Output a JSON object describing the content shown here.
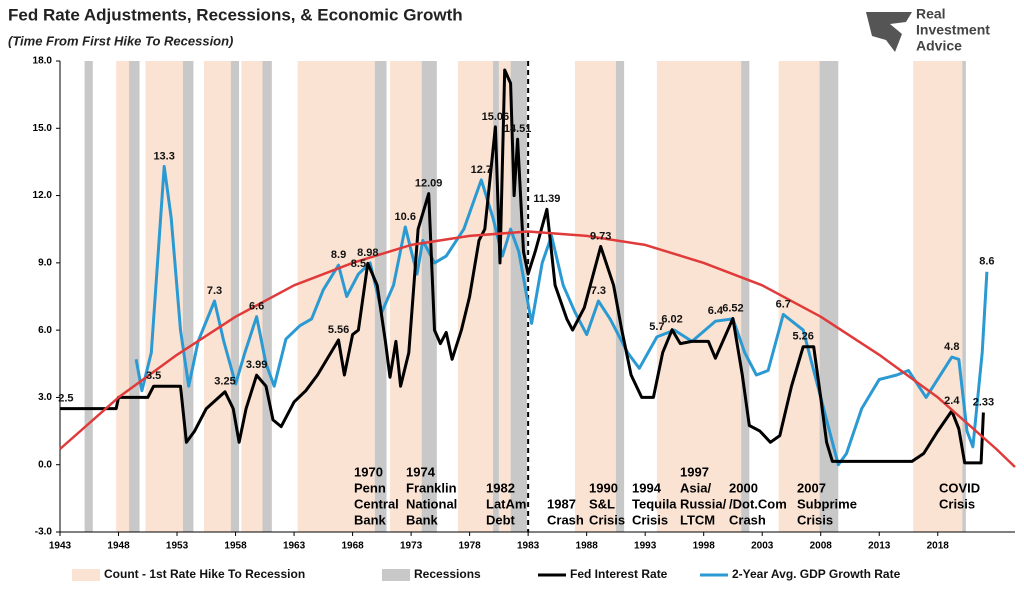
{
  "chart_data": {
    "type": "line",
    "title": "Fed Rate Adjustments, Recessions, & Economic Growth",
    "subtitle": "(Time From First Hike To Recession)",
    "xlim": [
      1943,
      2024.6
    ],
    "xticks": [
      1943,
      1948,
      1953,
      1958,
      1963,
      1968,
      1973,
      1978,
      1983,
      1988,
      1993,
      1998,
      2003,
      2008,
      2013,
      2018
    ],
    "ylim": [
      -3,
      18
    ],
    "yticks": [
      {
        "value": -3,
        "label": "-3.0"
      },
      {
        "value": 0,
        "label": "0.0"
      },
      {
        "value": 3,
        "label": "3.0"
      },
      {
        "value": 6,
        "label": "6.0"
      },
      {
        "value": 9,
        "label": "9.0"
      },
      {
        "value": 12,
        "label": "12.0"
      },
      {
        "value": 15,
        "label": "15.0"
      },
      {
        "value": 18,
        "label": "18.0"
      }
    ],
    "bands": [
      {
        "name": "Count - 1st Rate Hike To Recession",
        "color": "#fbe3d3",
        "ranges": [
          [
            1947.8,
            1948.9
          ],
          [
            1950.3,
            1953.5
          ],
          [
            1955.3,
            1957.6
          ],
          [
            1958.5,
            1960.3
          ],
          [
            1963.3,
            1969.9
          ],
          [
            1971.2,
            1973.9
          ],
          [
            1977.0,
            1980.0
          ],
          [
            1980.5,
            1981.5
          ],
          [
            1987.0,
            1990.5
          ],
          [
            1994.0,
            2001.2
          ],
          [
            2004.4,
            2007.9
          ],
          [
            2015.9,
            2020.1
          ]
        ]
      },
      {
        "name": "Recessions",
        "color": "#c8c8c8",
        "ranges": [
          [
            1945.1,
            1945.8
          ],
          [
            1948.9,
            1949.8
          ],
          [
            1953.5,
            1954.4
          ],
          [
            1957.6,
            1958.3
          ],
          [
            1960.3,
            1961.1
          ],
          [
            1969.9,
            1970.9
          ],
          [
            1973.9,
            1975.2
          ],
          [
            1980.0,
            1980.5
          ],
          [
            1981.5,
            1982.9
          ],
          [
            1990.5,
            1991.2
          ],
          [
            2001.2,
            2001.9
          ],
          [
            2007.9,
            2009.5
          ],
          [
            2020.1,
            2020.4
          ]
        ]
      }
    ],
    "series": [
      {
        "name": "Fed Interest Rate",
        "color": "#000000",
        "x": [
          1943,
          1947.8,
          1948,
          1950.5,
          1951,
          1953.3,
          1953.8,
          1954.5,
          1955.5,
          1957.1,
          1957.8,
          1958.3,
          1958.9,
          1959.8,
          1960.6,
          1961.2,
          1961.9,
          1963,
          1964,
          1965,
          1966.8,
          1967.3,
          1968,
          1968.5,
          1969.3,
          1970.1,
          1970.8,
          1971.2,
          1971.7,
          1972.1,
          1972.8,
          1973.6,
          1974.5,
          1975,
          1975.5,
          1976,
          1976.5,
          1977.3,
          1978,
          1978.8,
          1979.3,
          1980.2,
          1980.6,
          1981,
          1981.5,
          1981.8,
          1982.1,
          1982.6,
          1983,
          1983.6,
          1984.6,
          1985.3,
          1986.3,
          1986.8,
          1987.8,
          1989.2,
          1990.3,
          1991,
          1991.8,
          1992.7,
          1993.7,
          1994.5,
          1995.3,
          1996,
          1997,
          1998.4,
          1999,
          2000.5,
          2001.3,
          2001.9,
          2002.8,
          2003.7,
          2004.5,
          2005.5,
          2006.5,
          2007.4,
          2008,
          2008.5,
          2009,
          2015.8,
          2016.8,
          2018,
          2019.2,
          2019.8,
          2020.3,
          2021.7,
          2021.9
        ],
        "values": [
          2.5,
          2.5,
          3.0,
          3.0,
          3.5,
          3.5,
          1.0,
          1.5,
          2.5,
          3.25,
          2.5,
          1.0,
          2.5,
          3.99,
          3.5,
          2.0,
          1.7,
          2.8,
          3.3,
          4.0,
          5.56,
          4.0,
          5.8,
          6.0,
          8.98,
          8.0,
          5.5,
          3.9,
          5.5,
          3.5,
          5.0,
          10.5,
          12.09,
          6.0,
          5.4,
          5.9,
          4.7,
          6.0,
          7.5,
          10.0,
          10.5,
          15.06,
          9.0,
          17.6,
          17.0,
          12.0,
          14.51,
          9.5,
          8.5,
          9.5,
          11.39,
          8.0,
          6.5,
          6.0,
          7.0,
          9.73,
          8.0,
          6.0,
          4.0,
          3.0,
          3.0,
          5.0,
          6.02,
          5.4,
          5.5,
          5.5,
          4.75,
          6.52,
          4.0,
          1.75,
          1.5,
          1.0,
          1.3,
          3.5,
          5.26,
          5.26,
          3.0,
          1.0,
          0.15,
          0.15,
          0.5,
          1.5,
          2.4,
          1.6,
          0.08,
          0.08,
          2.33
        ]
      },
      {
        "name": "2-Year Avg. GDP Growth Rate",
        "color": "#2b9ad3",
        "x": [
          1949.5,
          1950,
          1950.8,
          1951.9,
          1952.5,
          1953.3,
          1954,
          1954.8,
          1956.2,
          1957,
          1958,
          1958.8,
          1959.8,
          1960.6,
          1961.3,
          1962.3,
          1963.5,
          1964.5,
          1965.5,
          1966.8,
          1967.5,
          1968.5,
          1969.5,
          1970.5,
          1971.5,
          1972.5,
          1973.5,
          1974,
          1975,
          1976,
          1977.5,
          1979,
          1980,
          1980.8,
          1981.5,
          1982.2,
          1983.3,
          1984.2,
          1985,
          1986,
          1987,
          1988,
          1989,
          1990,
          1991.5,
          1992.5,
          1994,
          1995.5,
          1997,
          1999,
          2000.5,
          2001.5,
          2002.5,
          2003.5,
          2004.8,
          2006.5,
          2008,
          2009.5,
          2010.2,
          2011.5,
          2013,
          2014.5,
          2015.5,
          2017,
          2019.2,
          2019.8,
          2020.5,
          2021,
          2021.8,
          2022.2
        ],
        "values": [
          4.7,
          3.3,
          5.0,
          13.3,
          11.0,
          6.0,
          3.5,
          5.5,
          7.3,
          5.5,
          3.6,
          5.0,
          6.6,
          4.5,
          3.5,
          5.6,
          6.2,
          6.5,
          7.8,
          8.9,
          7.5,
          8.5,
          9.0,
          6.8,
          8.0,
          10.6,
          8.5,
          10.0,
          9.0,
          9.3,
          10.5,
          12.7,
          11.0,
          9.3,
          10.5,
          9.5,
          6.3,
          9.0,
          10.2,
          8.0,
          6.8,
          5.8,
          7.3,
          6.5,
          5.0,
          4.3,
          5.7,
          6.0,
          5.5,
          6.4,
          6.5,
          5.0,
          4.0,
          4.2,
          6.7,
          6.0,
          3.0,
          0.0,
          0.5,
          2.5,
          3.8,
          4.0,
          4.2,
          3.0,
          4.8,
          4.7,
          1.5,
          0.8,
          5.0,
          8.6
        ]
      }
    ],
    "trend": {
      "color": "#e03a3a",
      "x": [
        1943,
        1948,
        1953,
        1958,
        1963,
        1968,
        1973,
        1978,
        1983,
        1988,
        1993,
        1998,
        2003,
        2008,
        2013,
        2018,
        2023,
        2024.6
      ],
      "values": [
        0.7,
        3.0,
        4.9,
        6.6,
        8.0,
        9.0,
        9.8,
        10.2,
        10.4,
        10.2,
        9.8,
        9.0,
        8.0,
        6.6,
        4.9,
        3.0,
        0.7,
        -0.1
      ]
    },
    "divider_x": 1983,
    "annotations": [
      {
        "x": 1943.5,
        "y": 2.5
      },
      {
        "x": 1951,
        "y": 3.5
      },
      {
        "x": 1951.9,
        "y": 13.3
      },
      {
        "x": 1956.2,
        "y": 7.3
      },
      {
        "x": 1959.8,
        "y": 6.6
      },
      {
        "x": 1957.1,
        "y": 3.25
      },
      {
        "x": 1959.8,
        "y": 3.99
      },
      {
        "x": 1966.8,
        "y": 5.56
      },
      {
        "x": 1966.8,
        "y": 8.9
      },
      {
        "x": 1968.5,
        "y": 8.5
      },
      {
        "x": 1969.3,
        "y": 8.98
      },
      {
        "x": 1972.5,
        "y": 10.6
      },
      {
        "x": 1974.5,
        "y": 12.09
      },
      {
        "x": 1979,
        "y": 12.7
      },
      {
        "x": 1980.2,
        "y": 15.06
      },
      {
        "x": 1982.1,
        "y": 14.51
      },
      {
        "x": 1984.6,
        "y": 11.39
      },
      {
        "x": 1989,
        "y": 7.3
      },
      {
        "x": 1989.2,
        "y": 9.73
      },
      {
        "x": 1995.3,
        "y": 6.02
      },
      {
        "x": 1994,
        "y": 5.7
      },
      {
        "x": 1999,
        "y": 6.4
      },
      {
        "x": 2000.5,
        "y": 6.52
      },
      {
        "x": 2004.8,
        "y": 6.7
      },
      {
        "x": 2006.5,
        "y": 5.26
      },
      {
        "x": 2019.2,
        "y": 4.8
      },
      {
        "x": 2019.2,
        "y": 2.4
      },
      {
        "x": 2021.9,
        "y": 2.33
      },
      {
        "x": 2022.2,
        "y": 8.6
      }
    ],
    "events": [
      [
        "1970",
        "Penn",
        "Central",
        "Bank"
      ],
      [
        "1974",
        "Franklin",
        "National",
        "Bank"
      ],
      [
        "1982",
        "LatAm",
        "Debt"
      ],
      [
        "1987",
        "Crash"
      ],
      [
        "1990",
        "S&L",
        "Crisis"
      ],
      [
        "1994",
        "Tequila",
        "Crisis"
      ],
      [
        "1997",
        "Asia/",
        "Russia/",
        "LTCM"
      ],
      [
        "2000",
        "/Dot.Com",
        "Crash"
      ],
      [
        "2007",
        "Subprime",
        "Crisis"
      ],
      [
        "COVID",
        "Crisis"
      ]
    ]
  },
  "logo": {
    "lines": [
      "Real",
      "Investment",
      "Advice"
    ]
  }
}
